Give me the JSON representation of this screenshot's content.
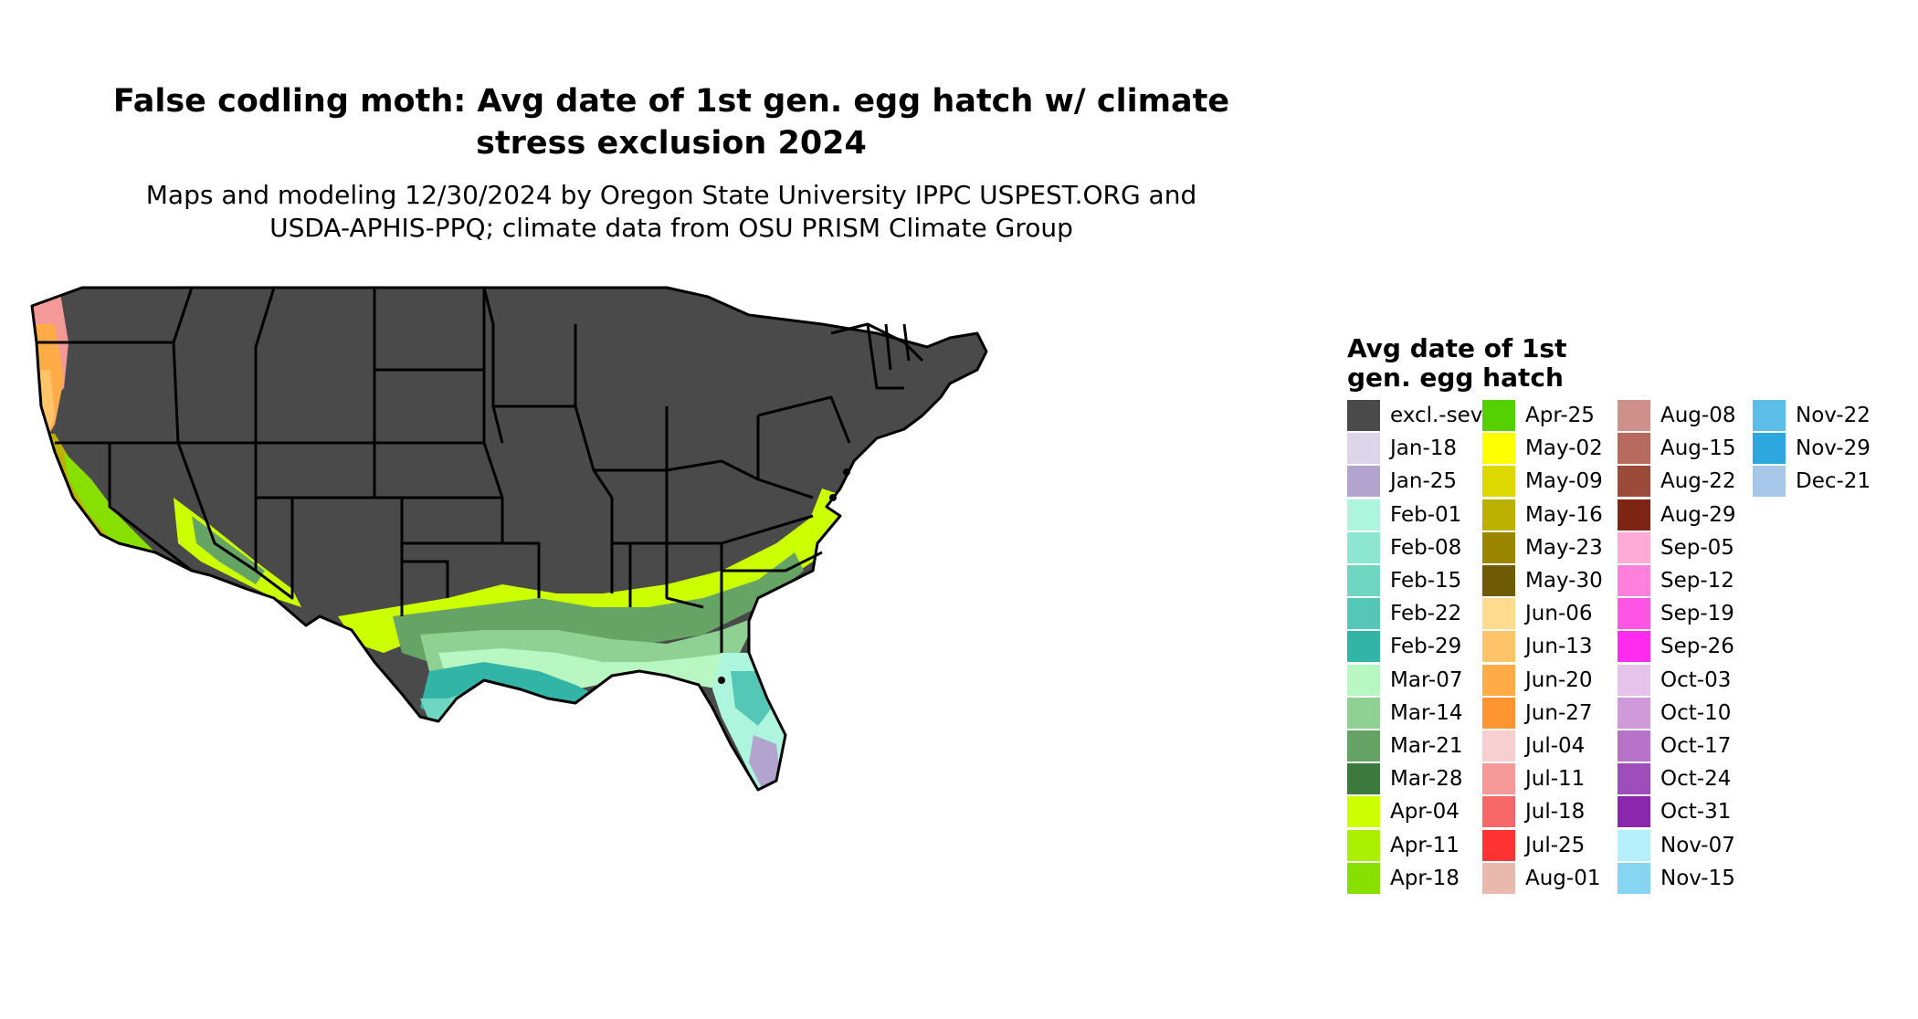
{
  "title_lines": [
    "False codling moth: Avg date of 1st gen. egg hatch w/ climate",
    "stress exclusion 2024"
  ],
  "subtitle_lines": [
    "Maps and modeling 12/30/2024 by Oregon State University IPPC USPEST.ORG and",
    "USDA-APHIS-PPQ; climate data from OSU PRISM Climate Group"
  ],
  "legend": {
    "title_lines": [
      "Avg date of 1st",
      "gen. egg hatch"
    ],
    "items": [
      {
        "label": "excl.-sev.",
        "color": "#4a4a4a"
      },
      {
        "label": "Jan-18",
        "color": "#ddd5ea"
      },
      {
        "label": "Jan-25",
        "color": "#b3a3cf"
      },
      {
        "label": "Feb-01",
        "color": "#aef5dd"
      },
      {
        "label": "Feb-08",
        "color": "#8de6cf"
      },
      {
        "label": "Feb-15",
        "color": "#6fd6c2"
      },
      {
        "label": "Feb-22",
        "color": "#55c7b6"
      },
      {
        "label": "Feb-29",
        "color": "#32b4a6"
      },
      {
        "label": "Mar-07",
        "color": "#b8f7c2"
      },
      {
        "label": "Mar-14",
        "color": "#8fd192"
      },
      {
        "label": "Mar-21",
        "color": "#66a466"
      },
      {
        "label": "Mar-28",
        "color": "#3d7a3d"
      },
      {
        "label": "Apr-04",
        "color": "#ccff00"
      },
      {
        "label": "Apr-11",
        "color": "#aaee00"
      },
      {
        "label": "Apr-18",
        "color": "#88e000"
      },
      {
        "label": "Apr-25",
        "color": "#55d000"
      },
      {
        "label": "May-02",
        "color": "#ffff00"
      },
      {
        "label": "May-09",
        "color": "#dcd800"
      },
      {
        "label": "May-16",
        "color": "#bcb000"
      },
      {
        "label": "May-23",
        "color": "#9a8600"
      },
      {
        "label": "May-30",
        "color": "#6f5a05"
      },
      {
        "label": "Jun-06",
        "color": "#ffdb90"
      },
      {
        "label": "Jun-13",
        "color": "#ffc46a"
      },
      {
        "label": "Jun-20",
        "color": "#ffab48"
      },
      {
        "label": "Jun-27",
        "color": "#ff9530"
      },
      {
        "label": "Jul-04",
        "color": "#f7cfd0"
      },
      {
        "label": "Jul-11",
        "color": "#f59898"
      },
      {
        "label": "Jul-18",
        "color": "#f66767"
      },
      {
        "label": "Jul-25",
        "color": "#ff3333"
      },
      {
        "label": "Aug-01",
        "color": "#e9b9ae"
      },
      {
        "label": "Aug-08",
        "color": "#d0908a"
      },
      {
        "label": "Aug-15",
        "color": "#b76a5d"
      },
      {
        "label": "Aug-22",
        "color": "#9c4a3a"
      },
      {
        "label": "Aug-29",
        "color": "#7e2412"
      },
      {
        "label": "Sep-05",
        "color": "#ffaad7"
      },
      {
        "label": "Sep-12",
        "color": "#ff80dc"
      },
      {
        "label": "Sep-19",
        "color": "#ff55e4"
      },
      {
        "label": "Sep-26",
        "color": "#ff2cf0"
      },
      {
        "label": "Oct-03",
        "color": "#e6c3ea"
      },
      {
        "label": "Oct-10",
        "color": "#d099da"
      },
      {
        "label": "Oct-17",
        "color": "#b773ca"
      },
      {
        "label": "Oct-24",
        "color": "#9f4dbb"
      },
      {
        "label": "Oct-31",
        "color": "#8a27ad"
      },
      {
        "label": "Nov-07",
        "color": "#b4effb"
      },
      {
        "label": "Nov-15",
        "color": "#86d5f2"
      },
      {
        "label": "Nov-22",
        "color": "#5cbde9"
      },
      {
        "label": "Nov-29",
        "color": "#2da7de"
      },
      {
        "label": "Dec-21",
        "color": "#a6c7e9"
      }
    ]
  },
  "colors": {
    "excluded": "#4a4a4a",
    "state_border": "#000000"
  }
}
